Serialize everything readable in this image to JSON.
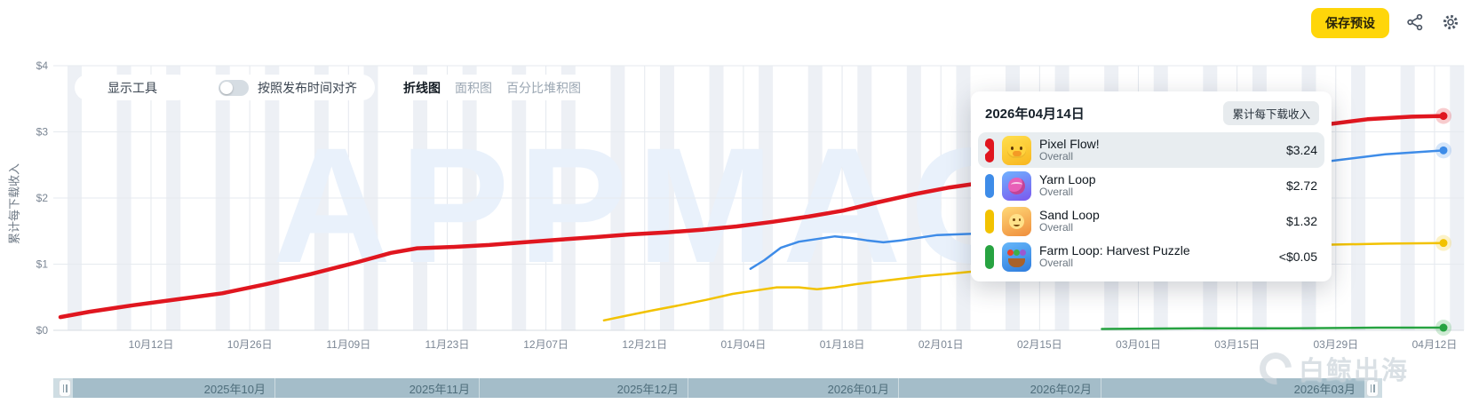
{
  "header": {
    "save_preset": "保存预设"
  },
  "controls": {
    "show_tools": "显示工具",
    "align_label": "按照发布时间对齐",
    "align_toggle_on": false,
    "tabs": [
      "折线图",
      "面积图",
      "百分比堆积图"
    ]
  },
  "y_axis": {
    "label": "累计每下载收入"
  },
  "watermarks": {
    "chart": "APPMAGIC",
    "brand": "白鲸出海"
  },
  "tooltip": {
    "date": "2026年04月14日",
    "metric_badge": "累计每下载收入",
    "rows": [
      {
        "name": "Pixel Flow!",
        "scope": "Overall",
        "value": "$3.24",
        "color": "#e0161f"
      },
      {
        "name": "Yarn Loop",
        "scope": "Overall",
        "value": "$2.72",
        "color": "#3e8ce8"
      },
      {
        "name": "Sand Loop",
        "scope": "Overall",
        "value": "$1.32",
        "color": "#f2c200"
      },
      {
        "name": "Farm Loop: Harvest Puzzle",
        "scope": "Overall",
        "value": "<$0.05",
        "color": "#27a341"
      }
    ]
  },
  "timeline": {
    "months": [
      "2025年10月",
      "2025年11月",
      "2025年12月",
      "2026年01月",
      "2026年02月",
      "2026年03月"
    ]
  },
  "chart_data": {
    "type": "line",
    "title": "",
    "ylabel": "累计每下载收入",
    "ylim": [
      0,
      4
    ],
    "y_ticks": [
      "$4",
      "$3",
      "$2",
      "$1",
      "$0"
    ],
    "x_tick_labels": [
      "10月12日",
      "10月26日",
      "11月09日",
      "11月23日",
      "12月07日",
      "12月21日",
      "01月04日",
      "01月18日",
      "02月01日",
      "02月15日",
      "03月01日",
      "03月15日",
      "03月29日",
      "04月12日"
    ],
    "x_range": [
      "2025-10-05",
      "2026-04-14"
    ],
    "grid": true,
    "legend_position": "tooltip",
    "series": [
      {
        "name": "Pixel Flow!",
        "color": "#e0161f",
        "line_width": 4.5,
        "final_value": "$3.24",
        "points": [
          [
            0.0,
            0.2
          ],
          [
            0.021,
            0.28
          ],
          [
            0.053,
            0.38
          ],
          [
            0.085,
            0.47
          ],
          [
            0.117,
            0.56
          ],
          [
            0.149,
            0.7
          ],
          [
            0.181,
            0.85
          ],
          [
            0.213,
            1.02
          ],
          [
            0.239,
            1.17
          ],
          [
            0.258,
            1.24
          ],
          [
            0.284,
            1.26
          ],
          [
            0.31,
            1.29
          ],
          [
            0.335,
            1.33
          ],
          [
            0.361,
            1.37
          ],
          [
            0.387,
            1.41
          ],
          [
            0.412,
            1.45
          ],
          [
            0.438,
            1.48
          ],
          [
            0.464,
            1.52
          ],
          [
            0.489,
            1.57
          ],
          [
            0.515,
            1.64
          ],
          [
            0.541,
            1.72
          ],
          [
            0.566,
            1.81
          ],
          [
            0.592,
            1.94
          ],
          [
            0.618,
            2.06
          ],
          [
            0.643,
            2.16
          ],
          [
            0.676,
            2.26
          ],
          [
            0.714,
            2.39
          ],
          [
            0.753,
            2.53
          ],
          [
            0.791,
            2.69
          ],
          [
            0.83,
            2.84
          ],
          [
            0.868,
            2.97
          ],
          [
            0.907,
            3.09
          ],
          [
            0.945,
            3.19
          ],
          [
            0.977,
            3.23
          ],
          [
            1.0,
            3.24
          ]
        ]
      },
      {
        "name": "Yarn Loop",
        "color": "#3e8ce8",
        "line_width": 2.5,
        "final_value": "$2.72",
        "points": [
          [
            0.499,
            0.93
          ],
          [
            0.509,
            1.06
          ],
          [
            0.521,
            1.25
          ],
          [
            0.534,
            1.34
          ],
          [
            0.547,
            1.38
          ],
          [
            0.56,
            1.42
          ],
          [
            0.57,
            1.4
          ],
          [
            0.583,
            1.36
          ],
          [
            0.595,
            1.33
          ],
          [
            0.608,
            1.36
          ],
          [
            0.621,
            1.4
          ],
          [
            0.634,
            1.44
          ],
          [
            0.647,
            1.45
          ],
          [
            0.66,
            1.46
          ],
          [
            0.701,
            1.64
          ],
          [
            0.753,
            1.9
          ],
          [
            0.804,
            2.14
          ],
          [
            0.856,
            2.35
          ],
          [
            0.907,
            2.53
          ],
          [
            0.958,
            2.66
          ],
          [
            1.0,
            2.72
          ]
        ]
      },
      {
        "name": "Sand Loop",
        "color": "#f2c200",
        "line_width": 2.5,
        "final_value": "$1.32",
        "points": [
          [
            0.393,
            0.15
          ],
          [
            0.409,
            0.22
          ],
          [
            0.428,
            0.3
          ],
          [
            0.448,
            0.38
          ],
          [
            0.467,
            0.46
          ],
          [
            0.486,
            0.55
          ],
          [
            0.502,
            0.6
          ],
          [
            0.518,
            0.65
          ],
          [
            0.534,
            0.65
          ],
          [
            0.547,
            0.62
          ],
          [
            0.56,
            0.65
          ],
          [
            0.576,
            0.7
          ],
          [
            0.592,
            0.74
          ],
          [
            0.608,
            0.78
          ],
          [
            0.624,
            0.82
          ],
          [
            0.64,
            0.85
          ],
          [
            0.66,
            0.89
          ],
          [
            0.701,
            0.98
          ],
          [
            0.753,
            1.09
          ],
          [
            0.804,
            1.17
          ],
          [
            0.856,
            1.24
          ],
          [
            0.907,
            1.29
          ],
          [
            0.958,
            1.31
          ],
          [
            1.0,
            1.32
          ]
        ]
      },
      {
        "name": "Farm Loop: Harvest Puzzle",
        "color": "#27a341",
        "line_width": 2.5,
        "final_value": "<$0.05",
        "points": [
          [
            0.753,
            0.02
          ],
          [
            0.823,
            0.03
          ],
          [
            0.888,
            0.03
          ],
          [
            0.952,
            0.04
          ],
          [
            1.0,
            0.04
          ]
        ]
      }
    ]
  }
}
